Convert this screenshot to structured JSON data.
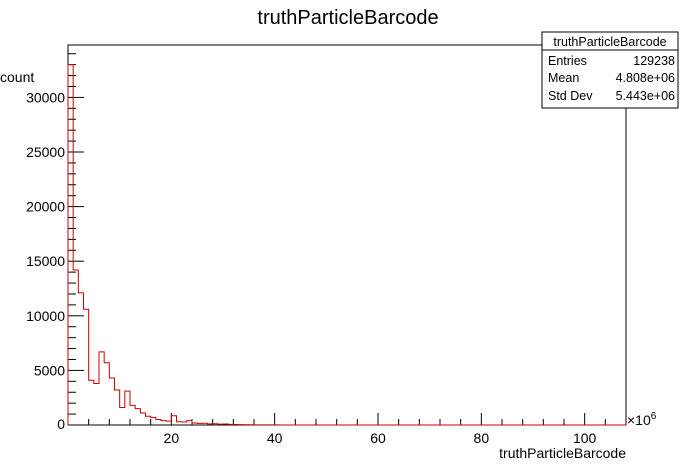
{
  "chart_data": {
    "type": "bar",
    "title": "truthParticleBarcode",
    "xlabel": "truthParticleBarcode",
    "ylabel": "count",
    "x_multiplier_label": "×10",
    "x_multiplier_exp": "6",
    "xlim": [
      0,
      108
    ],
    "ylim": [
      0,
      34800
    ],
    "x_ticks": [
      20,
      40,
      60,
      80,
      100
    ],
    "y_ticks": [
      5000,
      10000,
      15000,
      20000,
      25000,
      30000
    ],
    "line_color": "#cc0000",
    "bin_width": 1,
    "bins_start": 0,
    "values": [
      33000,
      14200,
      12100,
      10600,
      4100,
      3800,
      6700,
      5700,
      4300,
      3200,
      1600,
      3100,
      1800,
      1500,
      1100,
      800,
      700,
      500,
      400,
      350,
      850,
      300,
      280,
      400,
      180,
      150,
      160,
      100,
      120,
      80,
      90,
      60,
      40,
      30,
      25,
      20,
      15,
      12,
      10,
      8,
      6,
      5,
      4,
      4,
      3,
      3,
      2,
      2,
      2,
      1,
      1,
      1,
      1,
      1,
      1,
      0,
      1,
      0,
      0,
      1,
      0,
      0,
      0,
      0,
      0,
      0,
      0,
      0,
      0,
      0,
      0,
      0,
      0,
      0,
      0,
      0,
      0,
      0,
      0,
      0,
      0,
      0,
      0,
      0,
      0,
      0,
      0,
      0,
      0,
      0,
      0,
      0,
      0,
      0,
      0,
      0,
      0,
      0,
      0,
      0,
      0,
      0,
      0,
      0,
      0,
      0,
      0,
      0
    ],
    "stats_box": {
      "title": "truthParticleBarcode",
      "rows": [
        {
          "label": "Entries",
          "value": "129238"
        },
        {
          "label": "Mean",
          "value": "4.808e+06"
        },
        {
          "label": "Std Dev",
          "value": "5.443e+06"
        }
      ]
    }
  }
}
